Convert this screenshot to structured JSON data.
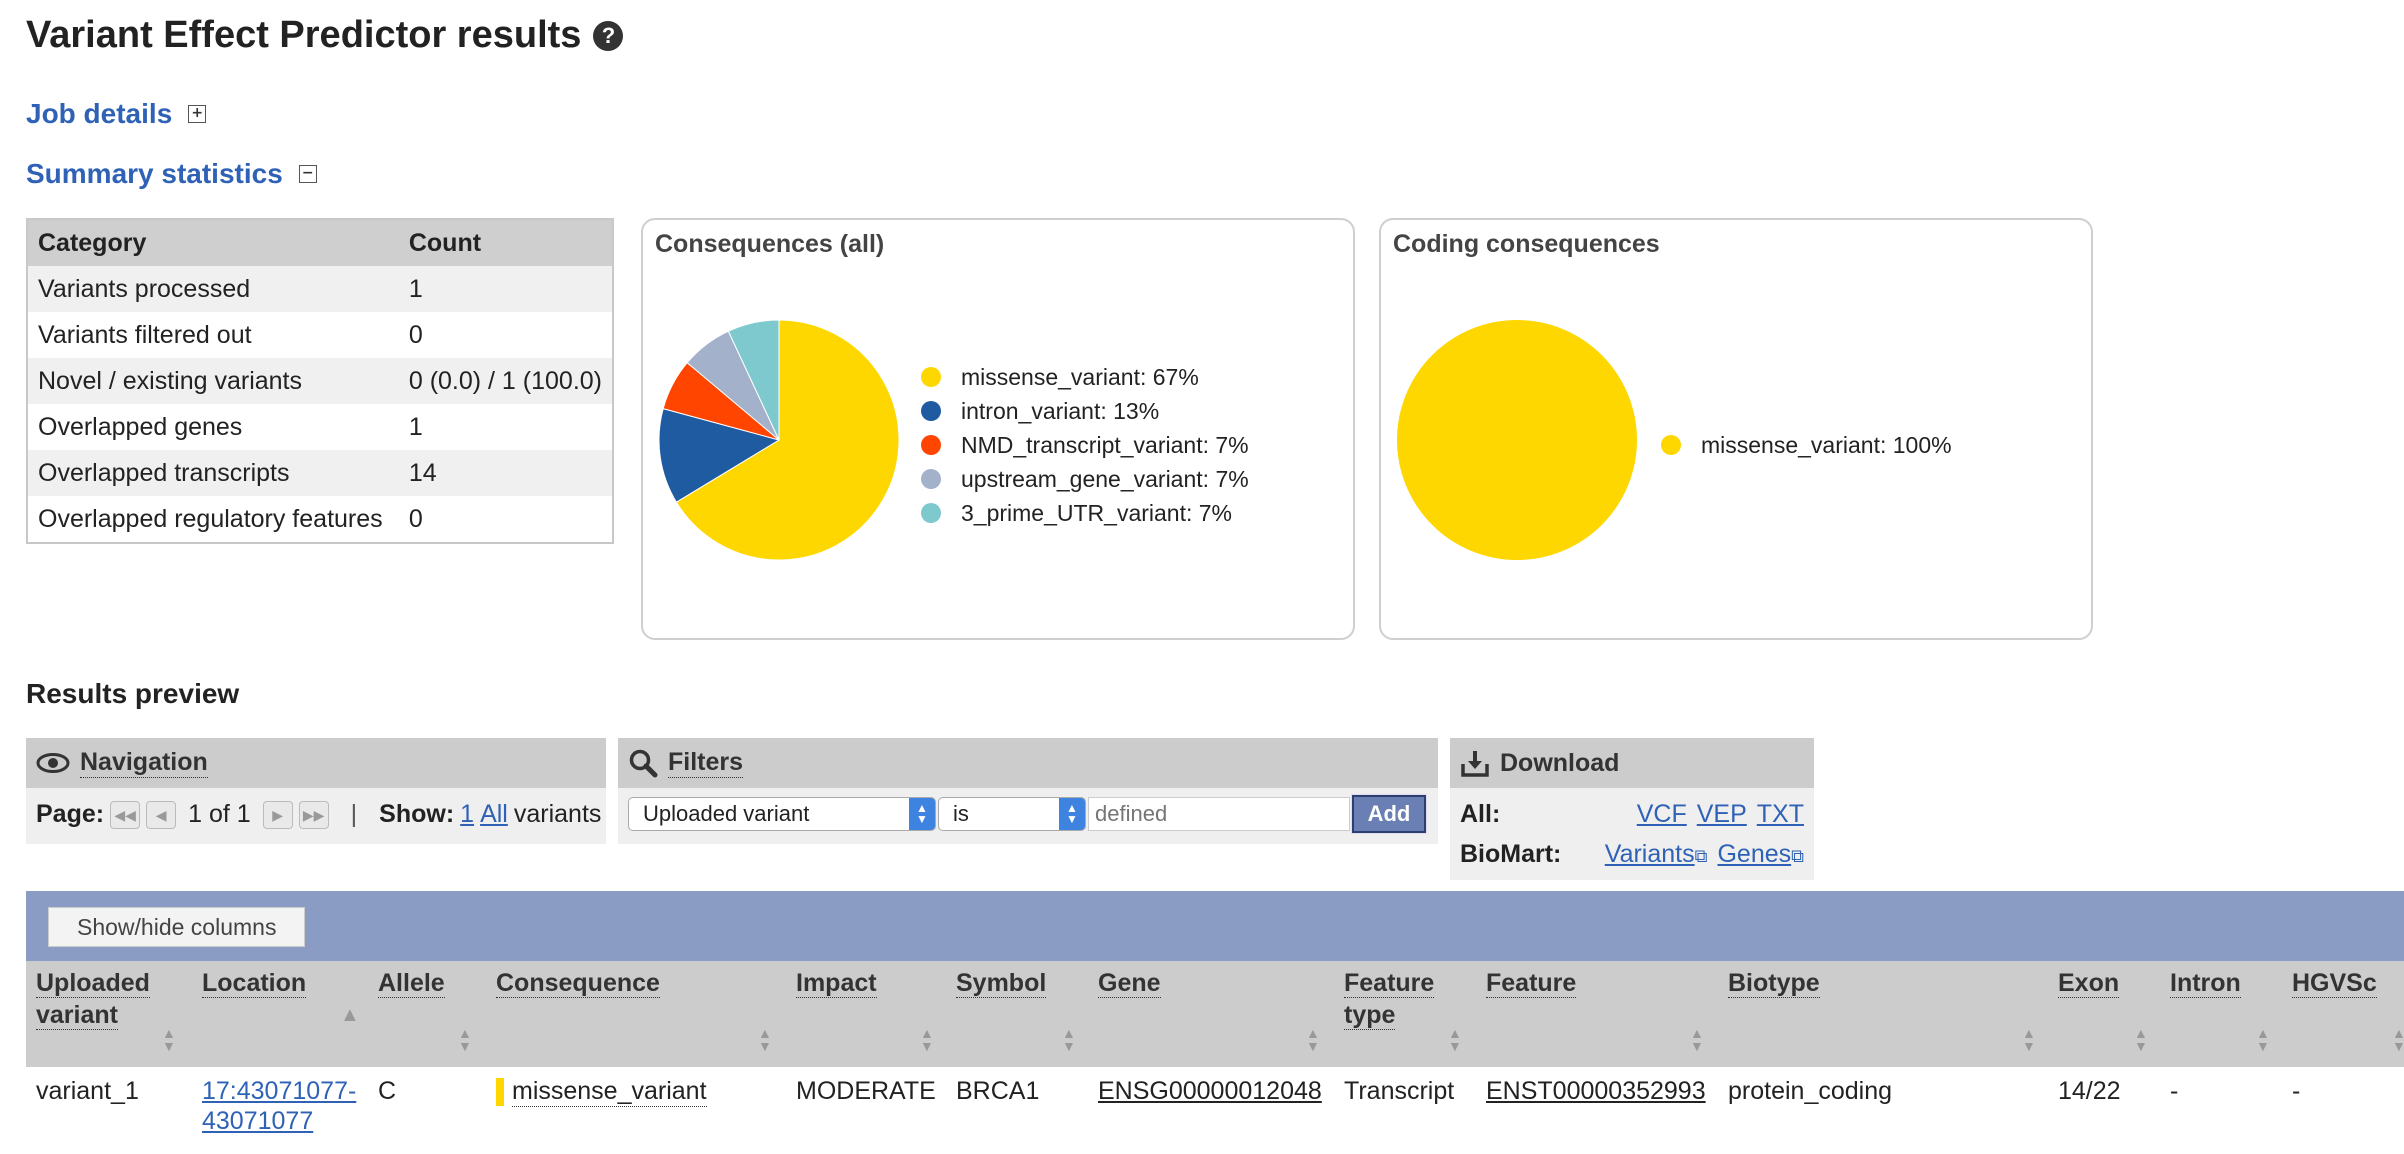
{
  "title": "Variant Effect Predictor results",
  "job_details": "Job details",
  "summary_statistics": "Summary statistics",
  "summary_table": {
    "headers": [
      "Category",
      "Count"
    ],
    "rows": [
      [
        "Variants processed",
        "1"
      ],
      [
        "Variants filtered out",
        "0"
      ],
      [
        "Novel / existing variants",
        "0 (0.0) / 1 (100.0)"
      ],
      [
        "Overlapped genes",
        "1"
      ],
      [
        "Overlapped transcripts",
        "14"
      ],
      [
        "Overlapped regulatory features",
        "0"
      ]
    ]
  },
  "chart_data": [
    {
      "type": "pie",
      "title": "Consequences (all)",
      "labels": [
        "missense_variant: 67%",
        "intron_variant: 13%",
        "NMD_transcript_variant: 7%",
        "upstream_gene_variant: 7%",
        "3_prime_UTR_variant: 7%"
      ],
      "categories": [
        "missense_variant",
        "intron_variant",
        "NMD_transcript_variant",
        "upstream_gene_variant",
        "3_prime_UTR_variant"
      ],
      "values": [
        67,
        13,
        7,
        7,
        7
      ],
      "colors": [
        "#FFD700",
        "#1F5BA0",
        "#FF4500",
        "#A3B2CA",
        "#7EC9CE"
      ]
    },
    {
      "type": "pie",
      "title": "Coding consequences",
      "labels": [
        "missense_variant: 100%"
      ],
      "categories": [
        "missense_variant"
      ],
      "values": [
        100
      ],
      "colors": [
        "#FFD700"
      ]
    }
  ],
  "results_preview": "Results preview",
  "navigation": {
    "title": "Navigation",
    "page_label": "Page:",
    "page_value": "1 of 1",
    "show_label": "Show:",
    "show_one": "1",
    "show_all": "All",
    "show_suffix": "variants",
    "separator": "|"
  },
  "filters": {
    "title": "Filters",
    "field": "Uploaded variant",
    "operator": "is",
    "value_placeholder": "defined",
    "add_button": "Add"
  },
  "download": {
    "title": "Download",
    "all_label": "All:",
    "formats": [
      "VCF",
      "VEP",
      "TXT"
    ],
    "biomart_label": "BioMart:",
    "biomart_links": [
      "Variants",
      "Genes"
    ]
  },
  "grid": {
    "show_hide": "Show/hide columns",
    "columns": [
      {
        "l1": "Uploaded",
        "l2": "variant"
      },
      {
        "l1": "Location",
        "l2": ""
      },
      {
        "l1": "Allele",
        "l2": ""
      },
      {
        "l1": "Consequence",
        "l2": ""
      },
      {
        "l1": "Impact",
        "l2": ""
      },
      {
        "l1": "Symbol",
        "l2": ""
      },
      {
        "l1": "Gene",
        "l2": ""
      },
      {
        "l1": "Feature",
        "l2": "type"
      },
      {
        "l1": "Feature",
        "l2": ""
      },
      {
        "l1": "Biotype",
        "l2": ""
      },
      {
        "l1": "Exon",
        "l2": ""
      },
      {
        "l1": "Intron",
        "l2": ""
      },
      {
        "l1": "HGVSc",
        "l2": ""
      }
    ],
    "row": {
      "uploaded_variant": "variant_1",
      "location_l1": "17:43071077-",
      "location_l2": "43071077",
      "allele": "C",
      "consequence": "missense_variant",
      "impact": "MODERATE",
      "symbol": "BRCA1",
      "gene": "ENSG00000012048",
      "feature_type": "Transcript",
      "feature": "ENST00000352993",
      "biotype": "protein_coding",
      "exon": "14/22",
      "intron": "-",
      "hgvsc": "-"
    }
  }
}
